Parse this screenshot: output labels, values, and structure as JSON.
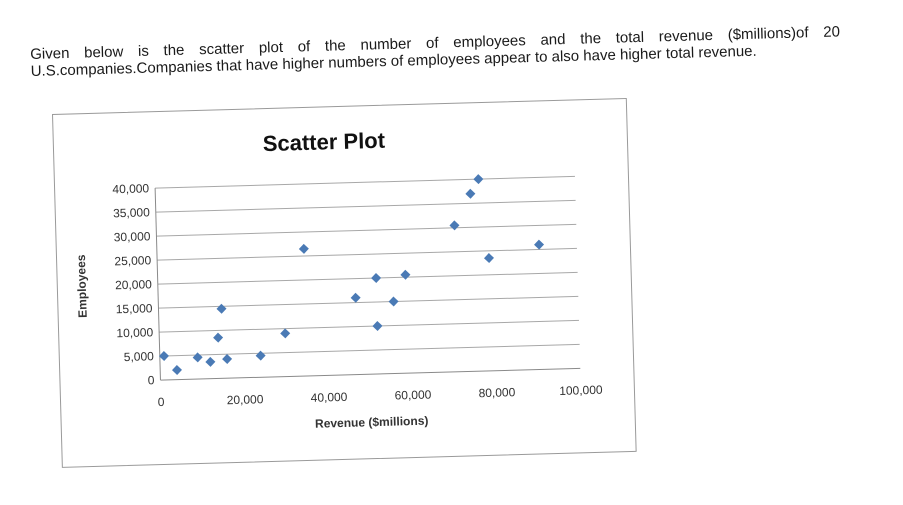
{
  "question": {
    "line1": "Given below is the scatter plot of the number of employees and the total revenue ($millions)of 20",
    "line2": "U.S.companies.Companies that have higher numbers of employees appear to also have higher total revenue."
  },
  "chart_data": {
    "type": "scatter",
    "title": "Scatter Plot",
    "xlabel": "Revenue ($millions)",
    "ylabel": "Employees",
    "xlim": [
      0,
      100000
    ],
    "ylim": [
      0,
      40000
    ],
    "xticks": [
      "0",
      "20,000",
      "40,000",
      "60,000",
      "80,000",
      "100,000"
    ],
    "yticks": [
      "0",
      "5,000",
      "10,000",
      "15,000",
      "20,000",
      "25,000",
      "30,000",
      "35,000",
      "40,000"
    ],
    "grid": "horizontal",
    "marker_color": "#4a7ab5",
    "points": [
      {
        "x": 1000,
        "y": 5000
      },
      {
        "x": 4000,
        "y": 2000
      },
      {
        "x": 9000,
        "y": 4500
      },
      {
        "x": 12000,
        "y": 3500
      },
      {
        "x": 14000,
        "y": 8500
      },
      {
        "x": 15000,
        "y": 14500
      },
      {
        "x": 16000,
        "y": 4000
      },
      {
        "x": 24000,
        "y": 4500
      },
      {
        "x": 30000,
        "y": 9000
      },
      {
        "x": 35000,
        "y": 26500
      },
      {
        "x": 47000,
        "y": 16000
      },
      {
        "x": 52000,
        "y": 20000
      },
      {
        "x": 52000,
        "y": 10000
      },
      {
        "x": 56000,
        "y": 15000
      },
      {
        "x": 59000,
        "y": 20500
      },
      {
        "x": 71000,
        "y": 30500
      },
      {
        "x": 75000,
        "y": 37000
      },
      {
        "x": 77000,
        "y": 40000
      },
      {
        "x": 79000,
        "y": 23500
      },
      {
        "x": 91000,
        "y": 26000
      }
    ]
  }
}
